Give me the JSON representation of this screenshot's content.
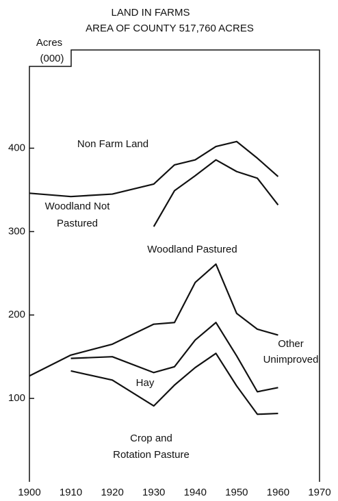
{
  "chart_data": {
    "type": "line",
    "title": [
      "LAND IN FARMS",
      "AREA OF COUNTY 517,760 ACRES"
    ],
    "ylabel": [
      "Acres",
      "(000)"
    ],
    "x": [
      1900,
      1910,
      1920,
      1930,
      1935,
      1940,
      1945,
      1950,
      1955,
      1960
    ],
    "series": [
      {
        "color": "#111111",
        "values": [
          346,
          342,
          345,
          357,
          380,
          386,
          402,
          408,
          388,
          366
        ]
      },
      {
        "color": "#111111",
        "values": [
          null,
          null,
          null,
          306,
          349,
          367,
          386,
          372,
          364,
          332
        ]
      },
      {
        "color": "#111111",
        "values": [
          127,
          152,
          165,
          189,
          191,
          239,
          261,
          202,
          183,
          176
        ]
      },
      {
        "color": "#111111",
        "values": [
          null,
          148,
          150,
          131,
          138,
          170,
          191,
          151,
          108,
          113
        ]
      },
      {
        "color": "#111111",
        "values": [
          null,
          133,
          122,
          91,
          116,
          137,
          154,
          115,
          81,
          82
        ]
      }
    ],
    "annotations": [
      "Non Farm Land",
      "Woodland Not",
      "Pastured",
      "Woodland Pastured",
      "Other",
      "Unimproved",
      "Hay",
      "Crop and",
      "Rotation Pasture"
    ],
    "xlim": [
      1900,
      1970
    ],
    "xticks": [
      1900,
      1910,
      1920,
      1930,
      1940,
      1950,
      1960,
      1970
    ],
    "ylim": [
      0,
      517.76
    ],
    "yticks": [
      100,
      200,
      300,
      400
    ],
    "grid": false
  }
}
